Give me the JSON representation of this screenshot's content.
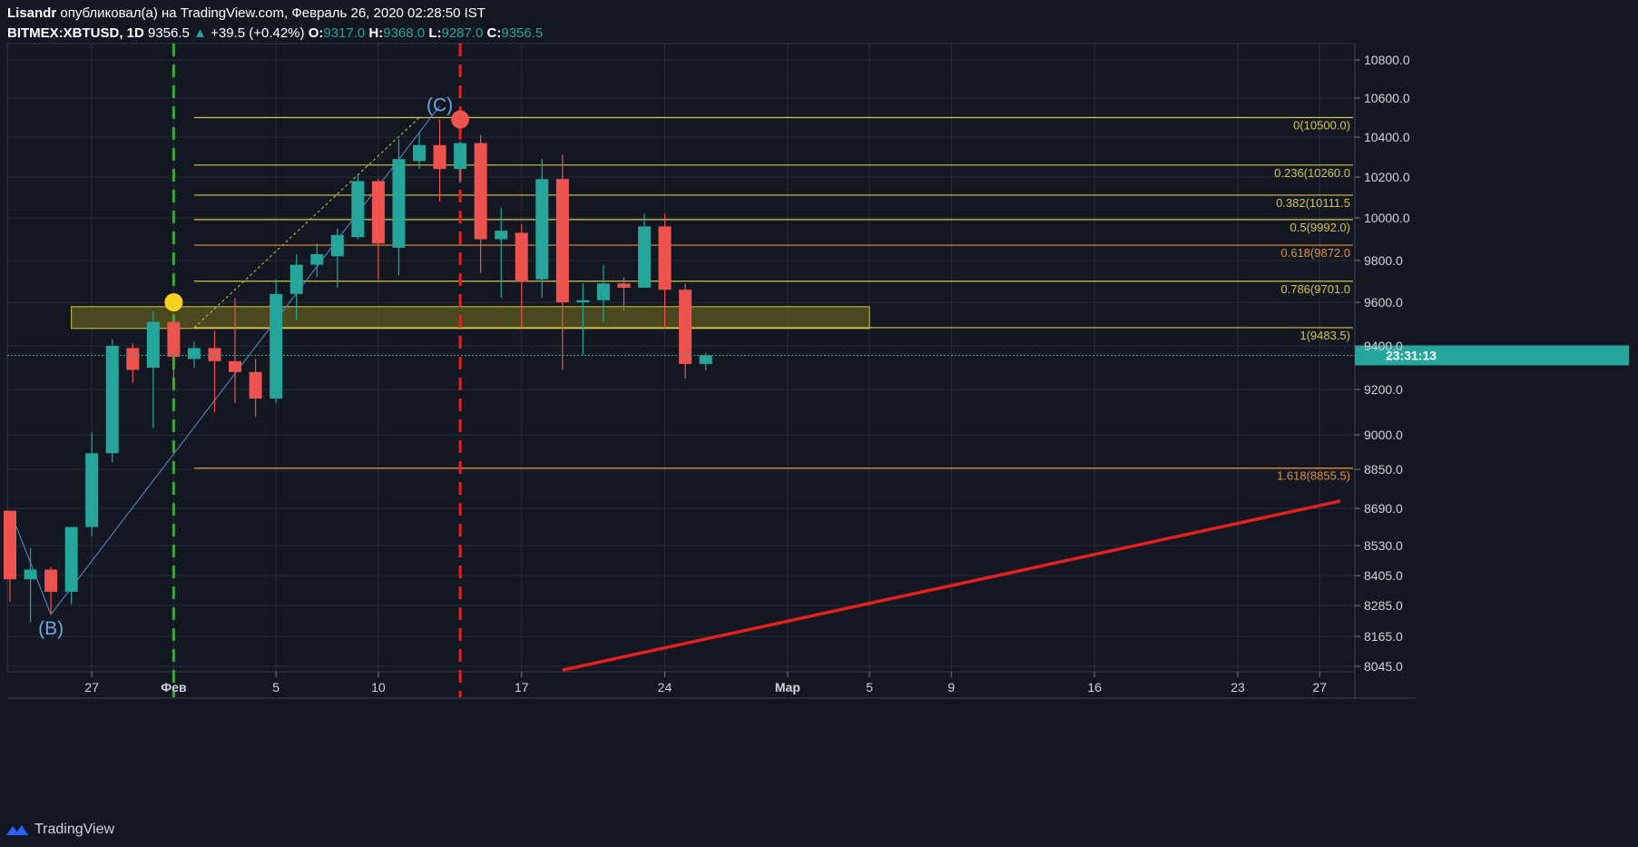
{
  "header": {
    "author": "Lisandr",
    "published_text": "опубликовал(а) на TradingView.com, Февраль 26, 2020 02:28:50 IST",
    "symbol": "BITMEX:XBTUSD, 1D",
    "last": "9356.5",
    "change_arrow": "▲",
    "change": "+39.5 (+0.42%)",
    "o_label": "O:",
    "o_value": "9317.0",
    "h_label": "H:",
    "h_value": "9368.0",
    "l_label": "L:",
    "l_value": "9287.0",
    "c_label": "C:",
    "c_value": "9356.5"
  },
  "footer": {
    "brand": "TradingView"
  },
  "colors": {
    "background": "#131722",
    "grid": "#2a2e39",
    "up": "#26a69a",
    "down": "#ef5350",
    "fib_yellow": "#d4c64a",
    "fib_orange": "#e0913a",
    "trend_red": "#e8201d",
    "green_dash": "#3aa53a",
    "red_dash": "#e8201d",
    "wave_label": "#6ea6e0",
    "zone_fill": "#5c5a1e"
  },
  "chart_data": {
    "type": "candlestick",
    "price_axis_ticks": [
      "10800.0",
      "10600.0",
      "10400.0",
      "10200.0",
      "10000.0",
      "9800.0",
      "9600.0",
      "9400.0",
      "9200.0",
      "9000.0",
      "8850.0",
      "8690.0",
      "8530.0",
      "8405.0",
      "8285.0",
      "8165.0",
      "8045.0"
    ],
    "time_axis_labels": [
      "27",
      "Фев",
      "5",
      "10",
      "17",
      "24",
      "Мар",
      "5",
      "9",
      "16",
      "23",
      "27"
    ],
    "current_price_label": "23:31:13",
    "candles": [
      {
        "date": "2020-01-23",
        "o": 8680,
        "h": 8680,
        "l": 8300,
        "c": 8390
      },
      {
        "date": "2020-01-24",
        "o": 8390,
        "h": 8520,
        "l": 8220,
        "c": 8430
      },
      {
        "date": "2020-01-25",
        "o": 8430,
        "h": 8440,
        "l": 8250,
        "c": 8340
      },
      {
        "date": "2020-01-26",
        "o": 8340,
        "h": 8610,
        "l": 8290,
        "c": 8610
      },
      {
        "date": "2020-01-27",
        "o": 8610,
        "h": 9010,
        "l": 8570,
        "c": 8920
      },
      {
        "date": "2020-01-28",
        "o": 8920,
        "h": 9430,
        "l": 8880,
        "c": 9400
      },
      {
        "date": "2020-01-29",
        "o": 9390,
        "h": 9410,
        "l": 9230,
        "c": 9290
      },
      {
        "date": "2020-01-30",
        "o": 9300,
        "h": 9560,
        "l": 9030,
        "c": 9510
      },
      {
        "date": "2020-01-31",
        "o": 9510,
        "h": 9550,
        "l": 9200,
        "c": 9350
      },
      {
        "date": "2020-02-01",
        "o": 9340,
        "h": 9420,
        "l": 9300,
        "c": 9390
      },
      {
        "date": "2020-02-02",
        "o": 9390,
        "h": 9470,
        "l": 9100,
        "c": 9330
      },
      {
        "date": "2020-02-03",
        "o": 9330,
        "h": 9620,
        "l": 9140,
        "c": 9280
      },
      {
        "date": "2020-02-04",
        "o": 9280,
        "h": 9340,
        "l": 9080,
        "c": 9160
      },
      {
        "date": "2020-02-05",
        "o": 9160,
        "h": 9710,
        "l": 9140,
        "c": 9640
      },
      {
        "date": "2020-02-06",
        "o": 9640,
        "h": 9830,
        "l": 9520,
        "c": 9780
      },
      {
        "date": "2020-02-07",
        "o": 9780,
        "h": 9880,
        "l": 9720,
        "c": 9830
      },
      {
        "date": "2020-02-08",
        "o": 9820,
        "h": 9950,
        "l": 9670,
        "c": 9920
      },
      {
        "date": "2020-02-09",
        "o": 9910,
        "h": 10210,
        "l": 9900,
        "c": 10180
      },
      {
        "date": "2020-02-10",
        "o": 10180,
        "h": 10190,
        "l": 9710,
        "c": 9880
      },
      {
        "date": "2020-02-11",
        "o": 9860,
        "h": 10390,
        "l": 9730,
        "c": 10290
      },
      {
        "date": "2020-02-12",
        "o": 10280,
        "h": 10420,
        "l": 10240,
        "c": 10360
      },
      {
        "date": "2020-02-13",
        "o": 10360,
        "h": 10490,
        "l": 10080,
        "c": 10240
      },
      {
        "date": "2020-02-14",
        "o": 10240,
        "h": 10380,
        "l": 10170,
        "c": 10370
      },
      {
        "date": "2020-02-15",
        "o": 10370,
        "h": 10410,
        "l": 9740,
        "c": 9900
      },
      {
        "date": "2020-02-16",
        "o": 9900,
        "h": 10050,
        "l": 9620,
        "c": 9940
      },
      {
        "date": "2020-02-17",
        "o": 9930,
        "h": 9970,
        "l": 9480,
        "c": 9700
      },
      {
        "date": "2020-02-18",
        "o": 9710,
        "h": 10290,
        "l": 9620,
        "c": 10190
      },
      {
        "date": "2020-02-19",
        "o": 10190,
        "h": 10310,
        "l": 9290,
        "c": 9600
      },
      {
        "date": "2020-02-20",
        "o": 9600,
        "h": 9690,
        "l": 9360,
        "c": 9610
      },
      {
        "date": "2020-02-21",
        "o": 9610,
        "h": 9780,
        "l": 9510,
        "c": 9690
      },
      {
        "date": "2020-02-22",
        "o": 9690,
        "h": 9720,
        "l": 9560,
        "c": 9670
      },
      {
        "date": "2020-02-23",
        "o": 9670,
        "h": 10020,
        "l": 9670,
        "c": 9960
      },
      {
        "date": "2020-02-24",
        "o": 9960,
        "h": 10020,
        "l": 9480,
        "c": 9660
      },
      {
        "date": "2020-02-25",
        "o": 9660,
        "h": 9690,
        "l": 9250,
        "c": 9317
      },
      {
        "date": "2020-02-26",
        "o": 9317,
        "h": 9368,
        "l": 9287,
        "c": 9356.5
      }
    ],
    "fib_levels": [
      {
        "label": "0(10500.0)",
        "price": 10500,
        "color": "yellow"
      },
      {
        "label": "0.236(10260.0",
        "price": 10260,
        "color": "yellow"
      },
      {
        "label": "0.382(10111.5",
        "price": 10111.5,
        "color": "yellow"
      },
      {
        "label": "0.5(9992.0)",
        "price": 9992,
        "color": "yellow"
      },
      {
        "label": "0.618(9872.0",
        "price": 9872,
        "color": "orange"
      },
      {
        "label": "0.786(9701.0",
        "price": 9701,
        "color": "yellow"
      },
      {
        "label": "1(9483.5)",
        "price": 9483.5,
        "color": "yellow"
      },
      {
        "label": "1.618(8855.5)",
        "price": 8855.5,
        "color": "orange"
      }
    ],
    "zone": {
      "from_date": "2020-01-26",
      "to_date": "2020-03-05",
      "low": 9480,
      "high": 9580
    },
    "wave_labels": [
      {
        "text": "(B)",
        "date": "2020-01-25",
        "price": 8250
      },
      {
        "text": "(C)",
        "date": "2020-02-13",
        "price": 10560
      }
    ],
    "trendline": {
      "start_date": "2020-02-19",
      "start_price": 8030,
      "end_date": "2020-03-28",
      "end_price": 8720
    },
    "markers": [
      {
        "color": "yellow",
        "date": "2020-01-31",
        "price": 9600
      },
      {
        "color": "red",
        "date": "2020-02-14",
        "price": 10490
      }
    ],
    "vertical_dashed": [
      {
        "date": "2020-01-31",
        "color": "green"
      },
      {
        "date": "2020-02-14",
        "color": "red"
      }
    ]
  }
}
